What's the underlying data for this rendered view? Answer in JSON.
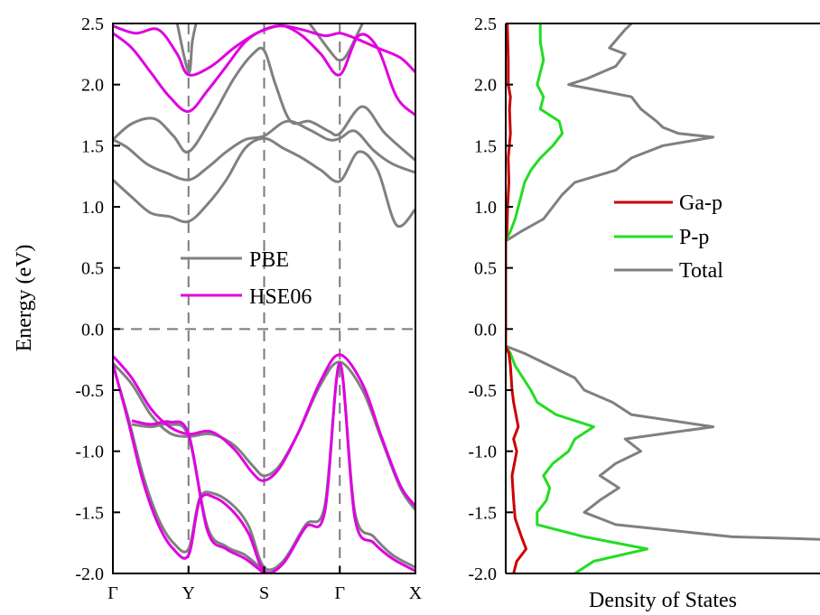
{
  "chart_data": [
    {
      "type": "line",
      "panel": "band-structure",
      "title": "",
      "ylabel": "Energy (eV)",
      "xlabel": "",
      "ylim": [
        -2.0,
        2.5
      ],
      "ytick_step": 0.5,
      "yticks": [
        "2.5",
        "2.0",
        "1.5",
        "1.0",
        "0.5",
        "0.0",
        "-0.5",
        "-1.0",
        "-1.5",
        "-2.0"
      ],
      "x_ticks": [
        {
          "label": "Γ",
          "x": 0.0
        },
        {
          "label": "Y",
          "x": 1.0
        },
        {
          "label": "S",
          "x": 2.0
        },
        {
          "label": "Γ",
          "x": 3.0
        },
        {
          "label": "X",
          "x": 4.0
        }
      ],
      "x_range": [
        0.0,
        4.0
      ],
      "grid": "dashed gray lines at high-symmetry points Y, S, Γ and at E = 0",
      "legend": {
        "placement": "center-left"
      },
      "series": [
        {
          "name": "PBE",
          "color": "#808080",
          "role": "conduction",
          "x": [
            0,
            0.25,
            0.5,
            0.75,
            1,
            1.25,
            1.5,
            1.75,
            2,
            2.25,
            2.5,
            2.75,
            3,
            3.25,
            3.5,
            3.75,
            4
          ],
          "y": [
            1.22,
            1.08,
            0.95,
            0.92,
            0.88,
            1.02,
            1.22,
            1.48,
            1.56,
            1.48,
            1.4,
            1.3,
            1.21,
            1.45,
            1.3,
            0.85,
            0.98
          ]
        },
        {
          "name": "PBE",
          "color": "#808080",
          "role": "conduction",
          "x": [
            0,
            0.2,
            0.45,
            0.7,
            1,
            1.25,
            1.5,
            1.75,
            2,
            2.3,
            2.6,
            2.85,
            3,
            3.2,
            3.45,
            3.7,
            4
          ],
          "y": [
            1.55,
            1.48,
            1.35,
            1.28,
            1.22,
            1.32,
            1.45,
            1.55,
            1.58,
            1.7,
            1.63,
            1.55,
            1.56,
            1.62,
            1.46,
            1.35,
            1.28
          ]
        },
        {
          "name": "PBE",
          "color": "#808080",
          "role": "conduction",
          "x": [
            0,
            0.25,
            0.55,
            0.8,
            1,
            1.3,
            1.6,
            1.85,
            2,
            2.15,
            2.35,
            2.6,
            2.85,
            3,
            3.3,
            3.6,
            4
          ],
          "y": [
            1.55,
            1.68,
            1.72,
            1.58,
            1.45,
            1.72,
            2.05,
            2.25,
            2.28,
            2.0,
            1.7,
            1.7,
            1.62,
            1.6,
            1.82,
            1.6,
            1.38
          ]
        },
        {
          "name": "PBE",
          "color": "#808080",
          "role": "conduction",
          "x": [
            0.85,
            1,
            1.05,
            1.1
          ],
          "y": [
            2.5,
            2.1,
            2.35,
            2.5
          ]
        },
        {
          "name": "PBE",
          "color": "#808080",
          "role": "conduction",
          "x": [
            2.6,
            2.9,
            3.0,
            3.1,
            3.3
          ],
          "y": [
            2.5,
            2.25,
            2.2,
            2.25,
            2.5
          ]
        },
        {
          "name": "PBE",
          "color": "#808080",
          "role": "valence",
          "x": [
            0,
            0.25,
            0.5,
            0.75,
            1,
            1.3,
            1.6,
            1.85,
            2,
            2.2,
            2.45,
            2.75,
            3,
            3.3,
            3.55,
            3.8,
            4
          ],
          "y": [
            -0.28,
            -0.45,
            -0.7,
            -0.85,
            -0.88,
            -0.86,
            -0.95,
            -1.12,
            -1.2,
            -1.12,
            -0.85,
            -0.45,
            -0.27,
            -0.5,
            -0.9,
            -1.3,
            -1.48
          ]
        },
        {
          "name": "PBE",
          "color": "#808080",
          "role": "valence",
          "x": [
            0,
            0.2,
            0.4,
            0.6,
            0.8,
            1,
            1.15,
            1.35,
            1.6,
            1.8,
            2,
            2.25,
            2.55,
            2.8,
            3,
            3.2,
            3.45,
            3.7,
            4
          ],
          "y": [
            -0.3,
            -0.72,
            -1.2,
            -1.55,
            -1.75,
            -1.8,
            -1.38,
            -1.35,
            -1.45,
            -1.62,
            -1.95,
            -1.9,
            -1.6,
            -1.45,
            -0.3,
            -1.5,
            -1.7,
            -1.85,
            -1.95
          ]
        },
        {
          "name": "PBE",
          "color": "#808080",
          "role": "valence",
          "x": [
            0.25,
            0.5,
            0.75,
            1,
            1.25,
            1.5,
            1.75,
            2
          ],
          "y": [
            -0.78,
            -0.8,
            -0.78,
            -0.88,
            -1.62,
            -1.78,
            -1.85,
            -1.98
          ]
        },
        {
          "name": "HSE06",
          "color": "#e000e0",
          "role": "conduction",
          "x": [
            0,
            0.25,
            0.5,
            0.75,
            1,
            1.25,
            1.5,
            1.75,
            2,
            2.25,
            2.5,
            2.75,
            3,
            3.25,
            3.5,
            3.75,
            4
          ],
          "y": [
            2.42,
            2.3,
            2.1,
            1.9,
            1.78,
            1.95,
            2.15,
            2.35,
            2.45,
            2.48,
            2.4,
            2.25,
            2.08,
            2.4,
            2.3,
            1.9,
            1.75
          ]
        },
        {
          "name": "HSE06",
          "color": "#e000e0",
          "role": "conduction",
          "x": [
            0,
            0.3,
            0.6,
            0.85,
            1,
            1.3,
            1.6,
            1.9,
            2.2,
            2.5,
            2.8,
            3,
            3.2,
            3.5,
            3.8,
            4
          ],
          "y": [
            2.48,
            2.42,
            2.45,
            2.25,
            2.08,
            2.15,
            2.3,
            2.42,
            2.48,
            2.45,
            2.4,
            2.42,
            2.38,
            2.3,
            2.22,
            2.1
          ]
        },
        {
          "name": "HSE06",
          "color": "#e000e0",
          "role": "valence",
          "x": [
            0,
            0.25,
            0.5,
            0.75,
            1,
            1.3,
            1.6,
            1.85,
            2,
            2.2,
            2.45,
            2.75,
            3,
            3.3,
            3.55,
            3.8,
            4
          ],
          "y": [
            -0.22,
            -0.4,
            -0.65,
            -0.8,
            -0.86,
            -0.84,
            -0.98,
            -1.18,
            -1.24,
            -1.14,
            -0.85,
            -0.42,
            -0.21,
            -0.45,
            -0.88,
            -1.28,
            -1.45
          ]
        },
        {
          "name": "HSE06",
          "color": "#e000e0",
          "role": "valence",
          "x": [
            0,
            0.2,
            0.4,
            0.6,
            0.8,
            1,
            1.15,
            1.35,
            1.6,
            1.8,
            2,
            2.25,
            2.55,
            2.8,
            3,
            3.2,
            3.45,
            3.7,
            4
          ],
          "y": [
            -0.28,
            -0.75,
            -1.25,
            -1.6,
            -1.8,
            -1.85,
            -1.4,
            -1.38,
            -1.5,
            -1.68,
            -1.98,
            -1.92,
            -1.62,
            -1.5,
            -0.28,
            -1.55,
            -1.75,
            -1.88,
            -1.98
          ]
        },
        {
          "name": "HSE06",
          "color": "#e000e0",
          "role": "valence",
          "x": [
            0.25,
            0.5,
            0.75,
            1,
            1.25,
            1.5,
            1.75,
            2
          ],
          "y": [
            -0.75,
            -0.78,
            -0.76,
            -0.86,
            -1.65,
            -1.8,
            -1.88,
            -2.0
          ]
        }
      ]
    },
    {
      "type": "line",
      "panel": "density-of-states",
      "orientation": "horizontal (DOS on x, energy on y)",
      "title": "",
      "xlabel": "Density of States",
      "ylabel": "",
      "ylim": [
        -2.0,
        2.5
      ],
      "ytick_step": 0.5,
      "yticks": [
        "2.5",
        "2.0",
        "1.5",
        "1.0",
        "0.5",
        "0.0",
        "-0.5",
        "-1.0",
        "-1.5",
        "-2.0"
      ],
      "xlim": [
        0,
        100
      ],
      "x_ticks_shown": false,
      "legend": {
        "placement": "center-right"
      },
      "series": [
        {
          "name": "Ga-p",
          "color": "#cc0000",
          "energy": [
            2.5,
            2.2,
            2.0,
            1.9,
            1.8,
            1.6,
            1.4,
            1.2,
            1.0,
            0.8,
            0.72,
            0.5,
            0.0,
            -0.14,
            -0.2,
            -0.3,
            -0.5,
            -0.6,
            -0.8,
            -0.9,
            -1.0,
            -1.2,
            -1.4,
            -1.55,
            -1.7,
            -1.8,
            -1.9,
            -2.0
          ],
          "dos": [
            0.5,
            0.8,
            0.8,
            1.5,
            1.2,
            1.5,
            0.8,
            1.0,
            0.6,
            0.4,
            0,
            0,
            0,
            0,
            1.0,
            1.5,
            2.0,
            2.5,
            4.0,
            2.5,
            3.5,
            2.0,
            2.5,
            3.0,
            5.0,
            6.5,
            3.5,
            2.5
          ]
        },
        {
          "name": "P-p",
          "color": "#22dd22",
          "energy": [
            2.5,
            2.35,
            2.2,
            2.0,
            1.9,
            1.8,
            1.7,
            1.6,
            1.5,
            1.4,
            1.3,
            1.2,
            1.1,
            1.0,
            0.9,
            0.8,
            0.72,
            0.5,
            0.0,
            -0.14,
            -0.2,
            -0.3,
            -0.5,
            -0.6,
            -0.7,
            -0.8,
            -0.9,
            -1.0,
            -1.1,
            -1.2,
            -1.3,
            -1.4,
            -1.5,
            -1.6,
            -1.7,
            -1.8,
            -1.9,
            -2.0
          ],
          "dos": [
            11,
            11,
            12,
            10,
            12,
            11,
            17,
            18,
            15,
            11,
            8,
            6,
            5,
            4,
            3,
            1.5,
            0,
            0,
            0,
            0,
            1.5,
            3,
            8,
            10,
            16,
            28,
            22,
            20,
            15,
            12,
            14,
            13,
            10,
            10,
            25,
            45,
            28,
            22
          ]
        },
        {
          "name": "Total",
          "color": "#808080",
          "energy": [
            2.5,
            2.45,
            2.3,
            2.25,
            2.15,
            2.05,
            2.0,
            1.95,
            1.9,
            1.8,
            1.7,
            1.65,
            1.6,
            1.57,
            1.5,
            1.4,
            1.3,
            1.2,
            1.1,
            1.0,
            0.9,
            0.8,
            0.72,
            0.5,
            0.0,
            -0.14,
            -0.2,
            -0.3,
            -0.4,
            -0.5,
            -0.6,
            -0.7,
            -0.8,
            -0.9,
            -1.0,
            -1.1,
            -1.2,
            -1.3,
            -1.4,
            -1.5,
            -1.6,
            -1.7,
            -1.75,
            -1.8,
            -1.9,
            -2.0
          ],
          "dos": [
            40,
            38,
            33,
            38,
            35,
            26,
            20,
            30,
            40,
            43,
            48,
            50,
            55,
            66,
            50,
            40,
            35,
            22,
            18,
            15,
            12,
            5,
            0,
            0,
            0,
            0,
            6,
            14,
            22,
            25,
            34,
            40,
            66,
            38,
            43,
            35,
            30,
            36,
            30,
            25,
            35,
            72,
            140,
            120,
            110,
            100
          ]
        }
      ]
    }
  ]
}
